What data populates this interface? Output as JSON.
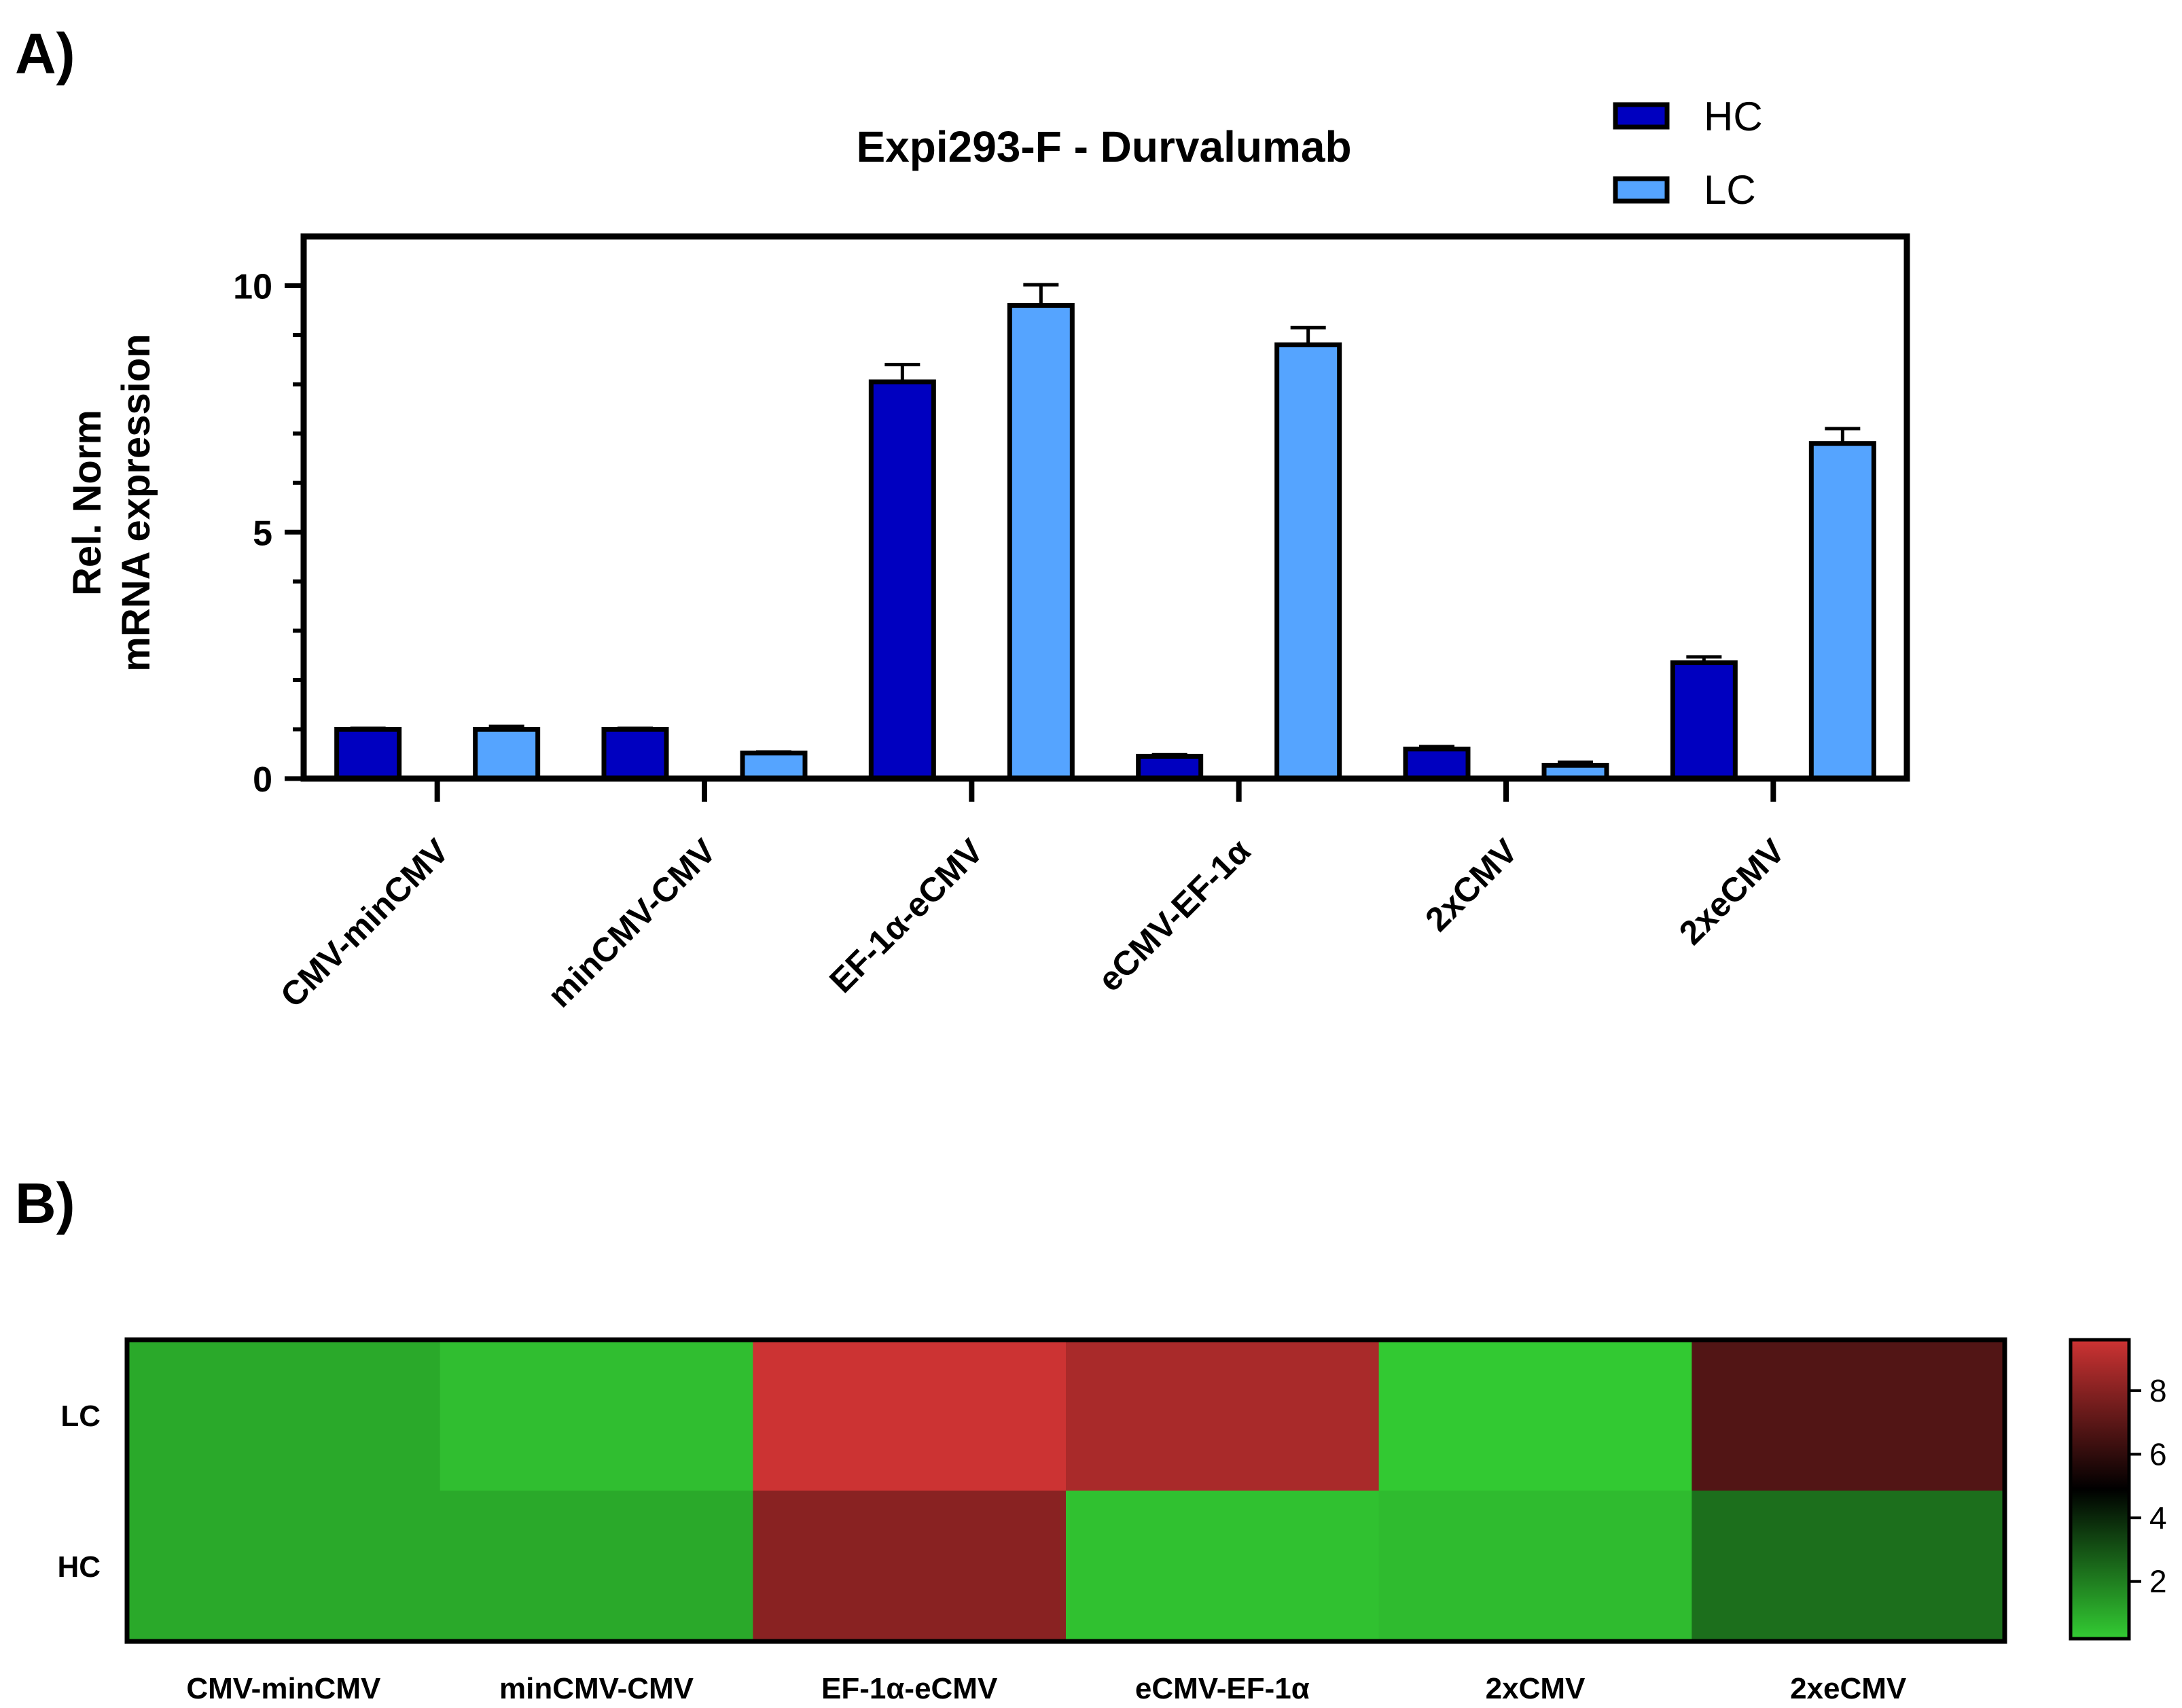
{
  "panel_a_label": "A)",
  "panel_b_label": "B)",
  "colors": {
    "hc": "#0000C0",
    "lc": "#55A4FF",
    "heat_low": "#33CC33",
    "heat_mid": "#000000",
    "heat_high": "#CC3333"
  },
  "chart_data": [
    {
      "type": "bar",
      "title": "Expi293-F - Durvalumab",
      "ylabel_line1": "Rel. Norm",
      "ylabel_line2": "mRNA expression",
      "xlabel": "",
      "ylim": [
        0,
        11
      ],
      "yticks": [
        0,
        5,
        10
      ],
      "ytick_labels": [
        "0",
        "5",
        "10"
      ],
      "categories": [
        "CMV-minCMV",
        "minCMV-CMV",
        "EF-1α-eCMV",
        "eCMV-EF-1α",
        "2xCMV",
        "2xeCMV"
      ],
      "series": [
        {
          "name": "HC",
          "values": [
            1.0,
            1.0,
            8.05,
            0.45,
            0.6,
            2.35
          ],
          "errors": [
            0.02,
            0.02,
            0.35,
            0.04,
            0.05,
            0.12
          ]
        },
        {
          "name": "LC",
          "values": [
            1.0,
            0.52,
            9.6,
            8.8,
            0.27,
            6.8
          ],
          "errors": [
            0.06,
            0.02,
            0.42,
            0.35,
            0.06,
            0.3
          ]
        }
      ],
      "legend_position": "top-right"
    },
    {
      "type": "heatmap",
      "rows": [
        "LC",
        "HC"
      ],
      "columns": [
        "CMV-minCMV",
        "minCMV-CMV",
        "EF-1α-eCMV",
        "eCMV-EF-1α",
        "2xCMV",
        "2xeCMV"
      ],
      "values": [
        [
          1.0,
          0.52,
          9.6,
          8.8,
          0.27,
          6.8
        ],
        [
          1.0,
          1.0,
          8.05,
          0.45,
          0.6,
          2.35
        ]
      ],
      "colorbar": {
        "min": 0.2,
        "max": 9.6,
        "ticks": [
          2,
          4,
          6,
          8
        ],
        "tick_labels": [
          "2",
          "4",
          "6",
          "8"
        ]
      }
    }
  ]
}
